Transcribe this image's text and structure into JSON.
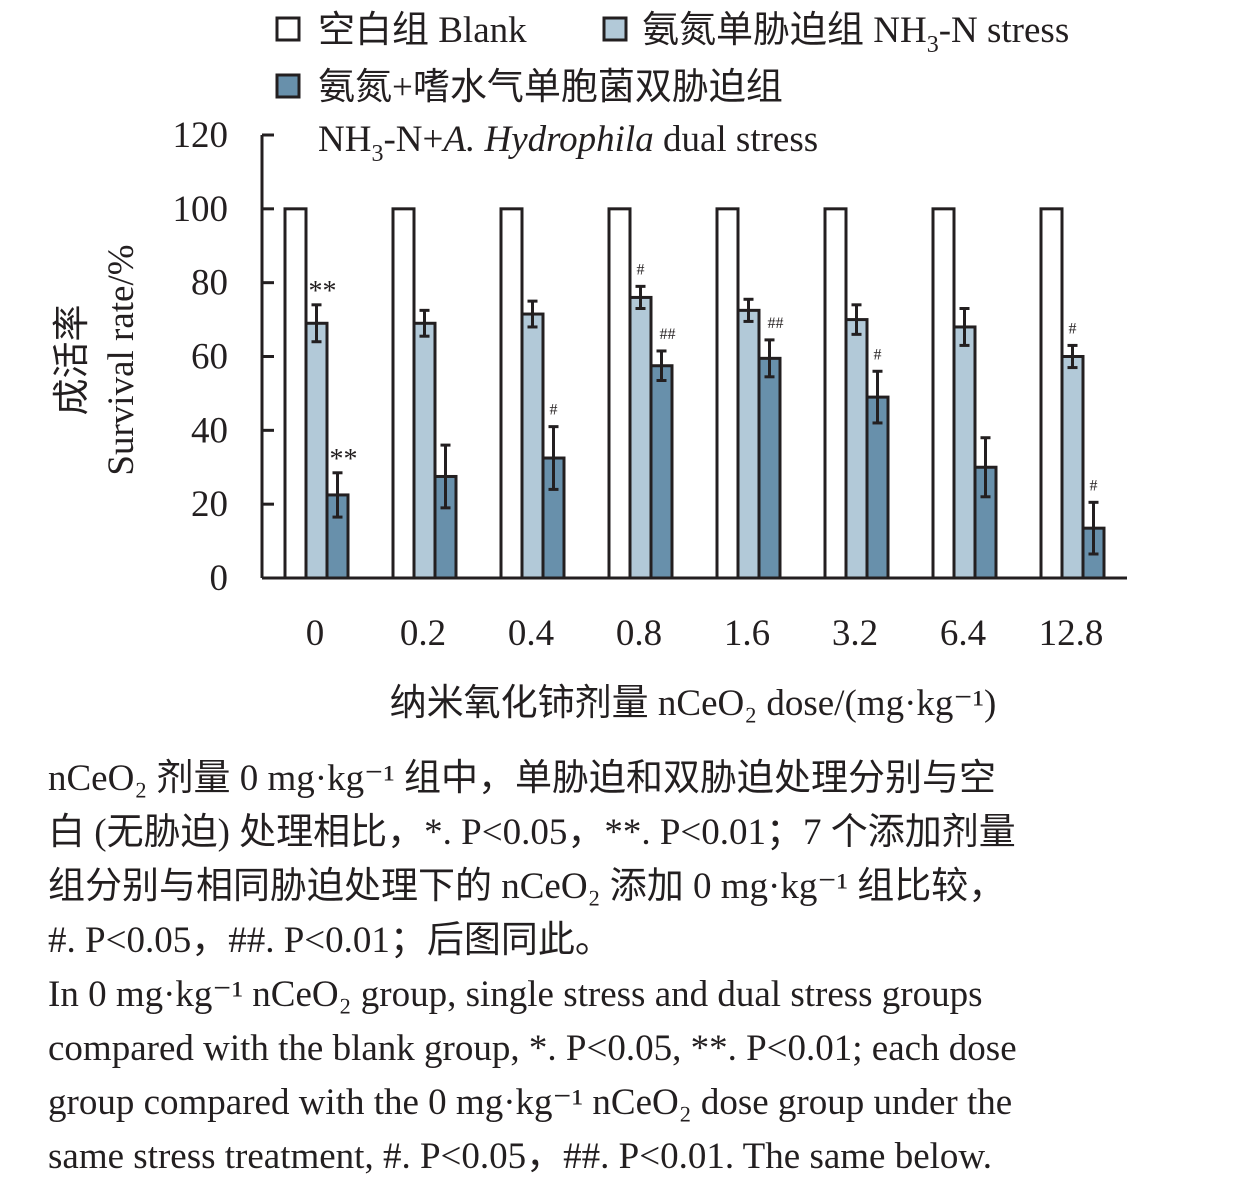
{
  "chart_data": {
    "type": "bar",
    "title": "",
    "xlabel": "纳米氧化铈剂量 nCeO₂ dose/(mg·kg⁻¹)",
    "ylabel_cn": "成活率",
    "ylabel": "Survival rate/%",
    "ylim": [
      0,
      120
    ],
    "yticks": [
      "0",
      "20",
      "40",
      "60",
      "80",
      "100",
      "120"
    ],
    "categories": [
      "0",
      "0.2",
      "0.4",
      "0.8",
      "1.6",
      "3.2",
      "6.4",
      "12.8"
    ],
    "legend_position": "top",
    "series": [
      {
        "name": "空白组 Blank",
        "color": "#ffffff",
        "values": [
          100,
          100,
          100,
          100,
          100,
          100,
          100,
          100
        ],
        "errors": [
          0,
          0,
          0,
          0,
          0,
          0,
          0,
          0
        ],
        "annotations": [
          "",
          "",
          "",
          "",
          "",
          "",
          "",
          ""
        ]
      },
      {
        "name": "氨氮单胁迫组 NH₃-N stress",
        "color": "#b2c9d8",
        "values": [
          69,
          69,
          71.5,
          76,
          72.5,
          70,
          68,
          60
        ],
        "errors": [
          5,
          3.5,
          3.5,
          3,
          3,
          4,
          5,
          3
        ],
        "annotations": [
          "**",
          "",
          "",
          "#",
          "",
          "",
          "",
          "#"
        ]
      },
      {
        "name": "氨氮+嗜水气单胞菌双胁迫组 NH₃-N+A. Hydrophila dual stress",
        "color": "#6890ab",
        "values": [
          22.5,
          27.5,
          32.5,
          57.5,
          59.5,
          49,
          30,
          13.5
        ],
        "errors": [
          6,
          8.5,
          8.5,
          4,
          5,
          7,
          8,
          7
        ],
        "annotations": [
          "**",
          "",
          "#",
          "##",
          "##",
          "#",
          "",
          "#"
        ]
      }
    ]
  },
  "legend": {
    "blank": "空白组 Blank",
    "single": "氨氮单胁迫组 NH",
    "single_sub": "3",
    "single_tail": "-N stress",
    "dual_cn": "氨氮+嗜水气单胞菌双胁迫组",
    "dual_en_a": "NH",
    "dual_en_sub": "3",
    "dual_en_b": "-N+",
    "dual_en_italic": "A. Hydrophila",
    "dual_en_c": " dual stress"
  },
  "caption": [
    "nCeO₂ 剂量 0 mg·kg⁻¹ 组中，单胁迫和双胁迫处理分别与空",
    "白 (无胁迫) 处理相比，*. P<0.05，**. P<0.01；7 个添加剂量",
    "组分别与相同胁迫处理下的 nCeO₂ 添加 0 mg·kg⁻¹ 组比较，",
    "#. P<0.05，##. P<0.01；后图同此。",
    "In 0 mg·kg⁻¹ nCeO₂ group, single stress and dual stress groups",
    "compared with the blank group, *. P<0.05, **. P<0.01; each dose",
    "group compared with the 0 mg·kg⁻¹ nCeO₂ dose group under the",
    "same stress treatment, #. P<0.05，##. P<0.01. The same below."
  ]
}
